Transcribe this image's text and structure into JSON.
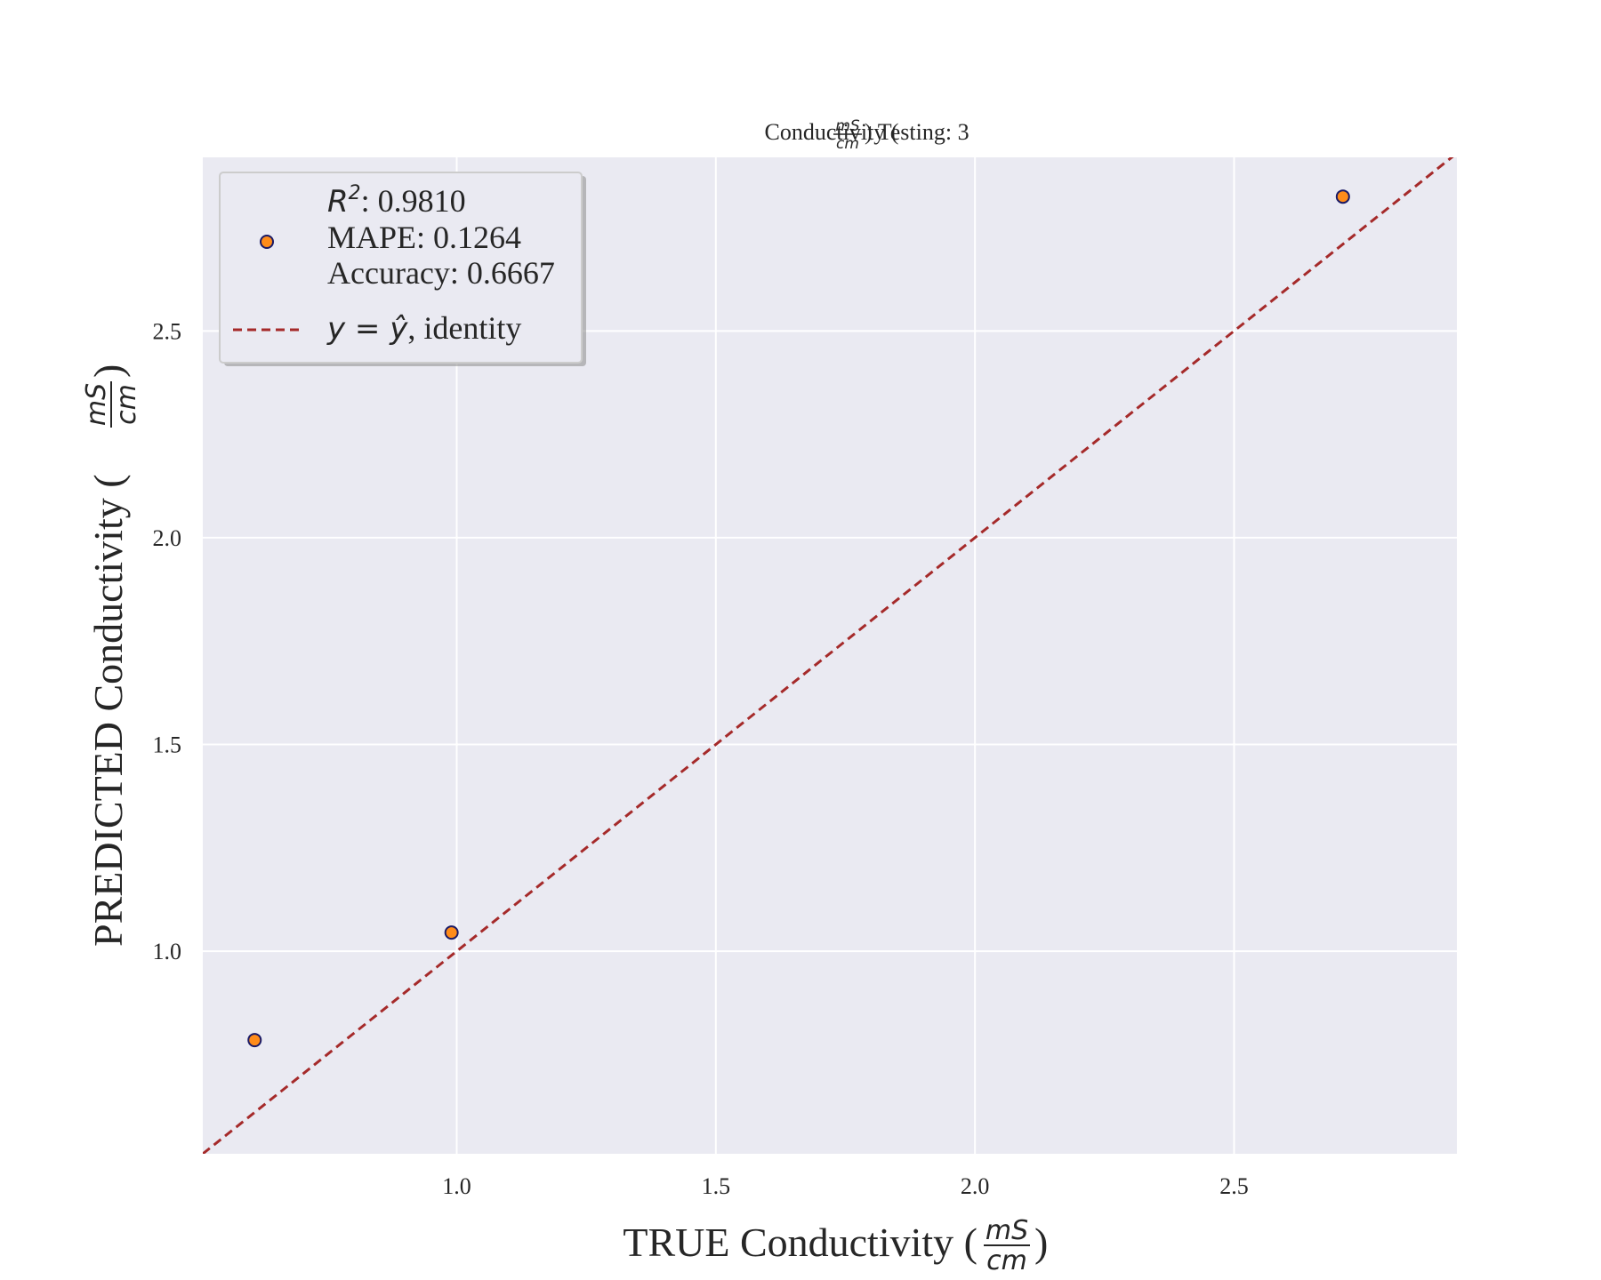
{
  "chart_data": {
    "type": "scatter",
    "title": {
      "prefix": "Conductivity (",
      "unit_num": "mS",
      "unit_den": "cm",
      "suffix": ") Testing: 3"
    },
    "xlabel": {
      "prefix": "TRUE Conductivity (",
      "unit_num": "mS",
      "unit_den": "cm",
      "suffix": ")"
    },
    "ylabel": {
      "prefix": "PREDICTED Conductivity (",
      "unit_num": "mS",
      "unit_den": "cm",
      "suffix": ")"
    },
    "xlim": [
      0.51,
      2.93
    ],
    "ylim": [
      0.51,
      2.92
    ],
    "xticks": [
      1.0,
      1.5,
      2.0,
      2.5
    ],
    "xtick_labels": [
      "1.0",
      "1.5",
      "2.0",
      "2.5"
    ],
    "yticks": [
      1.0,
      1.5,
      2.0,
      2.5
    ],
    "ytick_labels": [
      "1.0",
      "1.5",
      "2.0",
      "2.5"
    ],
    "grid": true,
    "series": [
      {
        "kind": "points",
        "x": [
          0.61,
          0.99,
          2.71
        ],
        "y": [
          0.785,
          1.045,
          2.825
        ],
        "color": "#ff8c1a",
        "edge_color": "#1a1a66"
      },
      {
        "kind": "identity-line",
        "x": [
          0.51,
          2.93
        ],
        "y": [
          0.51,
          2.93
        ],
        "color": "#a52a2a",
        "style": "dashed"
      }
    ],
    "legend": {
      "placement": "top-left",
      "entries": [
        {
          "marker": "point",
          "r2_label": "R",
          "r2_sup": "2",
          "r2_value": ": 0.9810",
          "mape": "MAPE: 0.1264",
          "accuracy": "Accuracy: 0.6667"
        },
        {
          "marker": "dashed-line",
          "label_math": "y = ŷ",
          "label_text": ", identity"
        }
      ]
    },
    "colors": {
      "axes_bg": "#eaeaf2",
      "grid": "#ffffff",
      "text": "#262626",
      "legend_bg": "#eaeaf2",
      "legend_border": "#cccccc"
    }
  }
}
